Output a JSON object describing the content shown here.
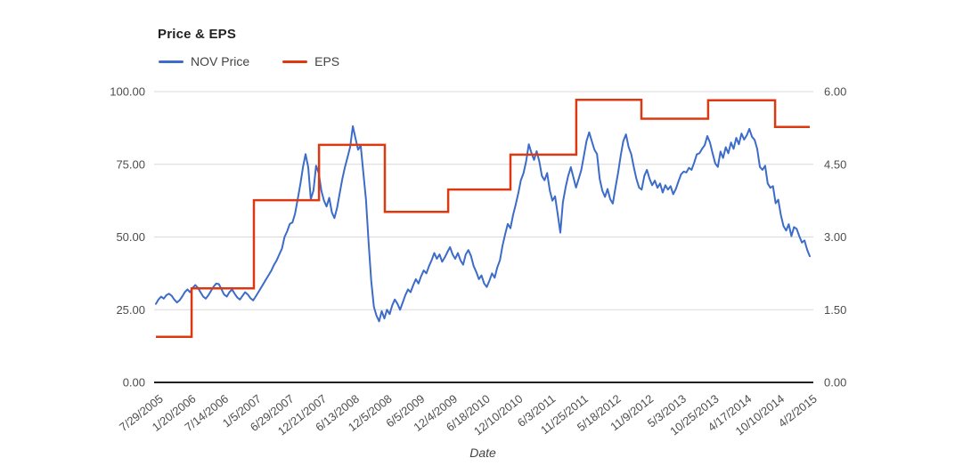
{
  "header": {
    "title": "Price & EPS"
  },
  "chart_data": {
    "type": "line",
    "title": "Price & EPS",
    "xlabel": "Date",
    "grid": true,
    "legend_position": "top-left",
    "x_tick_labels": [
      "7/29/2005",
      "1/20/2006",
      "7/14/2006",
      "1/5/2007",
      "6/29/2007",
      "12/21/2007",
      "6/13/2008",
      "12/5/2008",
      "6/5/2009",
      "12/4/2009",
      "6/18/2010",
      "12/10/2010",
      "6/3/2011",
      "11/25/2011",
      "5/18/2012",
      "11/9/2012",
      "5/3/2013",
      "10/25/2013",
      "4/17/2014",
      "10/10/2014",
      "4/2/2015"
    ],
    "y_left": {
      "ticks": [
        "0.00",
        "25.00",
        "50.00",
        "75.00",
        "100.00"
      ],
      "min": 0,
      "max": 100
    },
    "y_right": {
      "ticks": [
        "0.00",
        "1.50",
        "3.00",
        "4.50",
        "6.00"
      ],
      "min": 0,
      "max": 6
    },
    "series": [
      {
        "name": "NOV Price",
        "axis": "left",
        "style": "line",
        "color": "#3c6cc8",
        "values": [
          27.0,
          28.5,
          29.5,
          28.8,
          30.0,
          30.5,
          29.8,
          28.5,
          27.5,
          28.2,
          29.5,
          31.0,
          32.0,
          31.0,
          32.5,
          33.5,
          32.5,
          31.0,
          29.5,
          28.8,
          30.0,
          31.5,
          33.0,
          34.0,
          33.8,
          32.0,
          30.2,
          29.5,
          31.0,
          32.0,
          30.5,
          29.2,
          28.5,
          29.8,
          31.0,
          30.2,
          29.0,
          28.2,
          29.5,
          31.0,
          32.5,
          34.0,
          35.5,
          37.0,
          38.5,
          40.5,
          42.0,
          44.0,
          46.0,
          50.0,
          52.0,
          54.5,
          55.0,
          58.0,
          63.0,
          68.0,
          74.0,
          78.5,
          74.0,
          63.0,
          66.0,
          74.5,
          72.0,
          66.0,
          62.5,
          60.5,
          63.5,
          58.5,
          56.5,
          60.0,
          65.0,
          70.0,
          74.0,
          77.5,
          81.0,
          88.1,
          84.0,
          80.0,
          81.5,
          72.0,
          63.0,
          48.0,
          35.0,
          26.0,
          23.0,
          21.0,
          24.5,
          22.0,
          25.0,
          23.5,
          26.5,
          28.5,
          27.0,
          25.0,
          27.5,
          30.0,
          32.0,
          31.0,
          33.5,
          35.5,
          34.0,
          36.5,
          38.5,
          37.5,
          40.0,
          42.0,
          44.5,
          42.5,
          44.0,
          41.5,
          43.0,
          44.8,
          46.5,
          44.0,
          42.5,
          44.5,
          42.0,
          40.5,
          44.0,
          45.5,
          43.5,
          40.0,
          38.0,
          35.5,
          36.8,
          34.0,
          32.8,
          35.0,
          37.5,
          36.0,
          39.5,
          42.0,
          47.0,
          51.0,
          54.5,
          53.0,
          57.5,
          61.0,
          65.0,
          69.5,
          72.0,
          76.0,
          81.9,
          79.0,
          76.5,
          79.5,
          76.0,
          71.0,
          69.5,
          72.0,
          66.0,
          62.5,
          64.0,
          58.0,
          51.5,
          62.0,
          67.0,
          71.0,
          74.0,
          70.5,
          67.0,
          70.0,
          73.0,
          78.0,
          83.0,
          86.0,
          83.0,
          80.0,
          78.5,
          70.0,
          66.0,
          63.8,
          66.5,
          63.0,
          61.5,
          67.0,
          72.0,
          78.0,
          83.0,
          85.3,
          81.0,
          78.5,
          74.0,
          70.0,
          67.0,
          66.3,
          71.0,
          73.1,
          70.0,
          67.8,
          69.4,
          66.9,
          68.4,
          65.3,
          67.8,
          66.3,
          67.5,
          64.7,
          66.5,
          69.1,
          71.6,
          72.5,
          72.2,
          73.8,
          73.1,
          75.6,
          78.4,
          78.8,
          80.3,
          81.6,
          84.7,
          82.5,
          78.8,
          75.3,
          74.1,
          79.4,
          77.2,
          80.9,
          78.8,
          82.5,
          80.3,
          84.1,
          81.9,
          85.6,
          83.5,
          85.0,
          87.2,
          84.5,
          83.4,
          80.3,
          74.1,
          73.1,
          74.5,
          68.4,
          66.9,
          67.5,
          61.6,
          62.8,
          57.5,
          53.8,
          52.2,
          54.4,
          50.3,
          53.4,
          52.8,
          50.3,
          48.1,
          48.8,
          45.6,
          43.4
        ]
      },
      {
        "name": "EPS",
        "axis": "right",
        "style": "step",
        "color": "#dc3912",
        "steps": [
          {
            "i": 0,
            "v": 0.94
          },
          {
            "i": 13.6,
            "v": 1.94
          },
          {
            "i": 37.3,
            "v": 3.76
          },
          {
            "i": 62.1,
            "v": 4.9
          },
          {
            "i": 87.2,
            "v": 3.52
          },
          {
            "i": 111.3,
            "v": 3.98
          },
          {
            "i": 135.0,
            "v": 4.7
          },
          {
            "i": 160.1,
            "v": 5.83
          },
          {
            "i": 184.9,
            "v": 5.44
          },
          {
            "i": 210.3,
            "v": 5.82
          },
          {
            "i": 235.8,
            "v": 5.27
          }
        ],
        "end_i": 249
      }
    ]
  },
  "colors": {
    "price_line": "#3c6cc8",
    "eps_line": "#dc3912",
    "gridline": "#d9d9d9",
    "axis_line": "#212121",
    "tick_label": "#4d4d4d",
    "background": "#ffffff"
  }
}
